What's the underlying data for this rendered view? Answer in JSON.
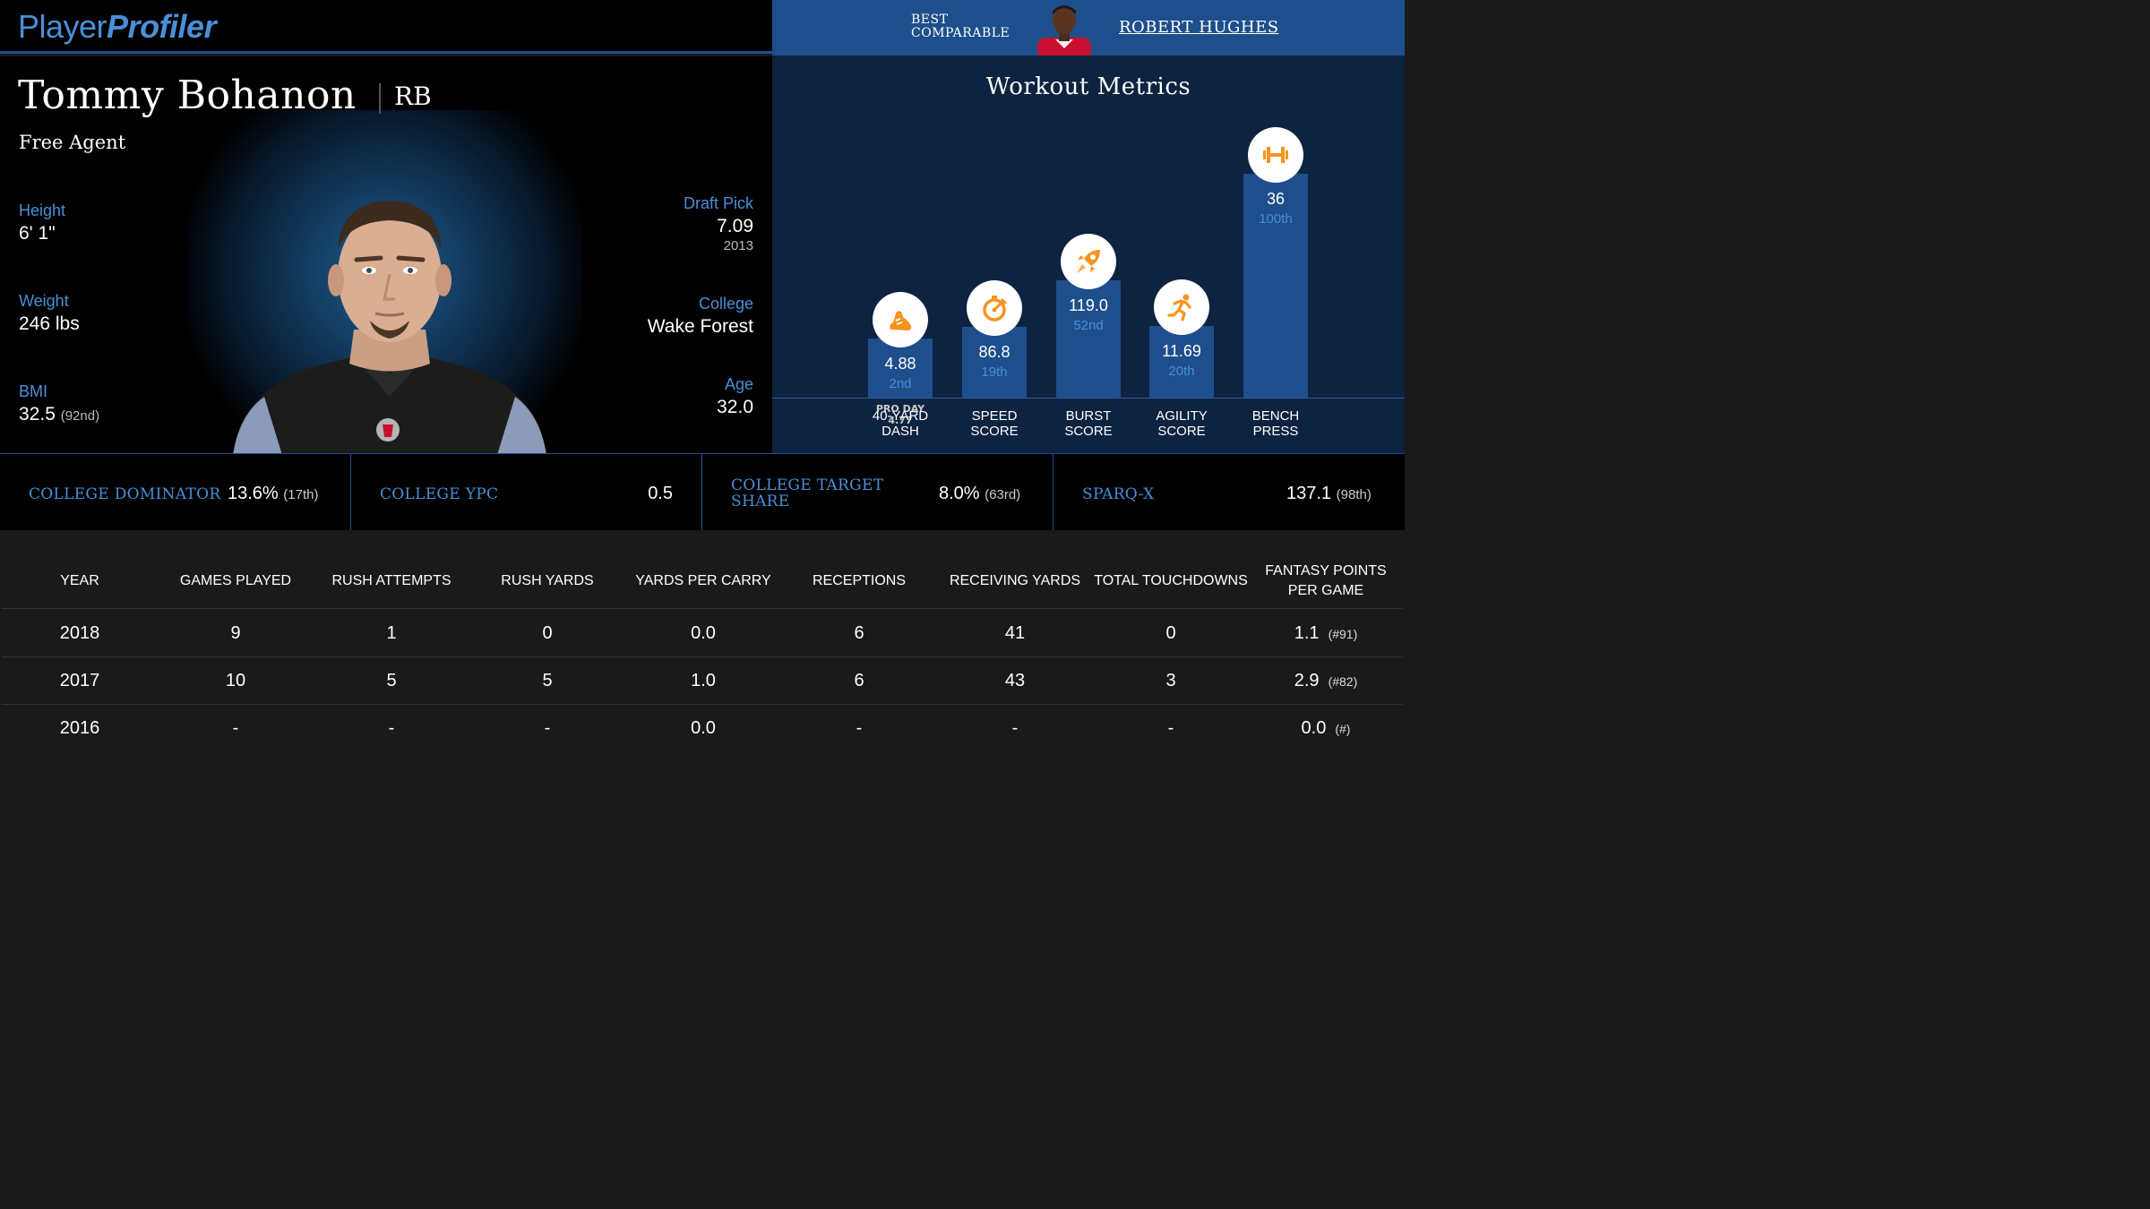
{
  "header": {
    "logo_part1": "Player",
    "logo_part2": "Profiler",
    "best_comparable_line1": "BEST",
    "best_comparable_line2": "COMPARABLE",
    "best_comparable_name": "ROBERT HUGHES"
  },
  "player": {
    "name": "Tommy Bohanon",
    "position": "RB",
    "team": "Free Agent",
    "height_label": "Height",
    "height_value": "6' 1\"",
    "weight_label": "Weight",
    "weight_value": "246 lbs",
    "bmi_label": "BMI",
    "bmi_value": "32.5",
    "bmi_rank": "(92nd)",
    "draft_label": "Draft Pick",
    "draft_value": "7.09",
    "draft_year": "2013",
    "college_label": "College",
    "college_value": "Wake Forest",
    "age_label": "Age",
    "age_value": "32.0"
  },
  "workout": {
    "title": "Workout Metrics",
    "metrics": [
      {
        "label_line1": "40-YARD",
        "label_line2": "DASH",
        "value": "4.88",
        "rank": "2nd",
        "percentile": 2,
        "extra_line1": "PRO DAY",
        "extra_line2": "4.77",
        "icon": "running-shoe-icon"
      },
      {
        "label_line1": "SPEED",
        "label_line2": "SCORE",
        "value": "86.8",
        "rank": "19th",
        "percentile": 19,
        "icon": "stopwatch-icon"
      },
      {
        "label_line1": "BURST",
        "label_line2": "SCORE",
        "value": "119.0",
        "rank": "52nd",
        "percentile": 52,
        "icon": "rocket-icon"
      },
      {
        "label_line1": "AGILITY",
        "label_line2": "SCORE",
        "value": "11.69",
        "rank": "20th",
        "percentile": 20,
        "icon": "running-person-icon"
      },
      {
        "label_line1": "BENCH",
        "label_line2": "PRESS",
        "value": "36",
        "rank": "100th",
        "percentile": 100,
        "icon": "dumbbell-icon"
      }
    ],
    "accent_color": "#f7941d",
    "bar_color": "#1e4e8c"
  },
  "advanced": [
    {
      "label_line1": "COLLEGE DOMINATOR",
      "label_line2": "",
      "value": "13.6%",
      "rank": "(17th)"
    },
    {
      "label_line1": "COLLEGE YPC",
      "label_line2": "",
      "value": "0.5",
      "rank": ""
    },
    {
      "label_line1": "COLLEGE TARGET",
      "label_line2": "SHARE",
      "value": "8.0%",
      "rank": "(63rd)"
    },
    {
      "label_line1": "SPARQ-X",
      "label_line2": "",
      "value": "137.1",
      "rank": "(98th)"
    }
  ],
  "stats_table": {
    "headers": [
      "YEAR",
      "GAMES PLAYED",
      "RUSH ATTEMPTS",
      "RUSH YARDS",
      "YARDS PER CARRY",
      "RECEPTIONS",
      "RECEIVING YARDS",
      "TOTAL TOUCHDOWNS",
      "FANTASY POINTS PER GAME"
    ],
    "rows": [
      {
        "year": "2018",
        "games": "9",
        "rush_att": "1",
        "rush_yds": "0",
        "ypc": "0.0",
        "rec": "6",
        "rec_yds": "41",
        "td": "0",
        "fppg": "1.1",
        "fppg_rank": "(#91)"
      },
      {
        "year": "2017",
        "games": "10",
        "rush_att": "5",
        "rush_yds": "5",
        "ypc": "1.0",
        "rec": "6",
        "rec_yds": "43",
        "td": "3",
        "fppg": "2.9",
        "fppg_rank": "(#82)"
      },
      {
        "year": "2016",
        "games": "-",
        "rush_att": "-",
        "rush_yds": "-",
        "ypc": "0.0",
        "rec": "-",
        "rec_yds": "-",
        "td": "-",
        "fppg": "0.0",
        "fppg_rank": "(#)"
      }
    ]
  }
}
